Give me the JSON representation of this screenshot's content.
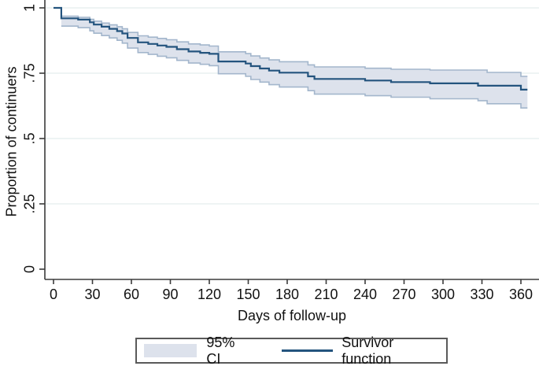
{
  "chart_data": {
    "type": "line",
    "subtype": "kaplan-meier-step-with-ci-band",
    "title": "",
    "xlabel": "Days of follow-up",
    "ylabel": "Proportion of continuers",
    "xlim": [
      -7,
      374
    ],
    "ylim": [
      0,
      1.02
    ],
    "x_ticks": [
      0,
      30,
      60,
      90,
      120,
      150,
      180,
      210,
      240,
      270,
      300,
      330,
      360
    ],
    "x_tick_labels": [
      "0",
      "30",
      "60",
      "90",
      "120",
      "150",
      "180",
      "210",
      "240",
      "270",
      "300",
      "330",
      "360"
    ],
    "y_ticks": [
      0,
      0.25,
      0.5,
      0.75,
      1
    ],
    "y_tick_labels": [
      "0",
      ".25",
      ".5",
      ".75",
      "1"
    ],
    "grid": "horizontal-at-y-ticks-excluding-zero",
    "legend_position": "bottom-center",
    "legend": {
      "ci_label": "95% CI",
      "survivor_label": "Survivor function"
    },
    "end_day": 365,
    "band_start_day": 6,
    "series": [
      {
        "name": "Survivor function",
        "style": "step",
        "points": [
          [
            0,
            1.0
          ],
          [
            6,
            0.96
          ],
          [
            19,
            0.955
          ],
          [
            28,
            0.945
          ],
          [
            31,
            0.936
          ],
          [
            37,
            0.928
          ],
          [
            43,
            0.92
          ],
          [
            49,
            0.911
          ],
          [
            53,
            0.902
          ],
          [
            57,
            0.885
          ],
          [
            65,
            0.868
          ],
          [
            73,
            0.862
          ],
          [
            80,
            0.856
          ],
          [
            87,
            0.851
          ],
          [
            95,
            0.842
          ],
          [
            104,
            0.833
          ],
          [
            113,
            0.828
          ],
          [
            120,
            0.824
          ],
          [
            127,
            0.795
          ],
          [
            148,
            0.787
          ],
          [
            152,
            0.777
          ],
          [
            159,
            0.768
          ],
          [
            166,
            0.76
          ],
          [
            174,
            0.752
          ],
          [
            196,
            0.738
          ],
          [
            201,
            0.728
          ],
          [
            240,
            0.722
          ],
          [
            260,
            0.716
          ],
          [
            290,
            0.711
          ],
          [
            327,
            0.702
          ],
          [
            360,
            0.687
          ]
        ]
      },
      {
        "name": "95% CI upper",
        "style": "step",
        "points": [
          [
            6,
            0.968
          ],
          [
            19,
            0.964
          ],
          [
            28,
            0.956
          ],
          [
            31,
            0.949
          ],
          [
            37,
            0.942
          ],
          [
            43,
            0.935
          ],
          [
            49,
            0.928
          ],
          [
            53,
            0.92
          ],
          [
            57,
            0.906
          ],
          [
            65,
            0.893
          ],
          [
            73,
            0.888
          ],
          [
            80,
            0.883
          ],
          [
            87,
            0.878
          ],
          [
            95,
            0.87
          ],
          [
            104,
            0.862
          ],
          [
            113,
            0.858
          ],
          [
            120,
            0.854
          ],
          [
            127,
            0.832
          ],
          [
            148,
            0.825
          ],
          [
            152,
            0.816
          ],
          [
            159,
            0.808
          ],
          [
            166,
            0.801
          ],
          [
            174,
            0.794
          ],
          [
            196,
            0.782
          ],
          [
            201,
            0.774
          ],
          [
            240,
            0.769
          ],
          [
            260,
            0.765
          ],
          [
            290,
            0.762
          ],
          [
            334,
            0.753
          ],
          [
            360,
            0.738
          ]
        ]
      },
      {
        "name": "95% CI lower",
        "style": "step",
        "points": [
          [
            6,
            0.93
          ],
          [
            19,
            0.924
          ],
          [
            28,
            0.912
          ],
          [
            31,
            0.903
          ],
          [
            37,
            0.894
          ],
          [
            43,
            0.885
          ],
          [
            49,
            0.876
          ],
          [
            53,
            0.865
          ],
          [
            57,
            0.846
          ],
          [
            65,
            0.829
          ],
          [
            73,
            0.822
          ],
          [
            80,
            0.815
          ],
          [
            87,
            0.809
          ],
          [
            95,
            0.799
          ],
          [
            104,
            0.789
          ],
          [
            113,
            0.784
          ],
          [
            120,
            0.779
          ],
          [
            127,
            0.748
          ],
          [
            148,
            0.738
          ],
          [
            152,
            0.726
          ],
          [
            159,
            0.716
          ],
          [
            166,
            0.706
          ],
          [
            174,
            0.697
          ],
          [
            196,
            0.683
          ],
          [
            201,
            0.67
          ],
          [
            240,
            0.664
          ],
          [
            260,
            0.658
          ],
          [
            290,
            0.652
          ],
          [
            327,
            0.645
          ],
          [
            334,
            0.633
          ],
          [
            360,
            0.617
          ]
        ]
      }
    ],
    "colors": {
      "survivor_line": "#24547e",
      "ci_fill": "#dde2ec",
      "ci_edge": "#a3b6cc",
      "gridline": "#e8f1f1",
      "axis": "#3b3b3b",
      "text": "#111111",
      "legend_border": "#5a5a5a"
    }
  }
}
